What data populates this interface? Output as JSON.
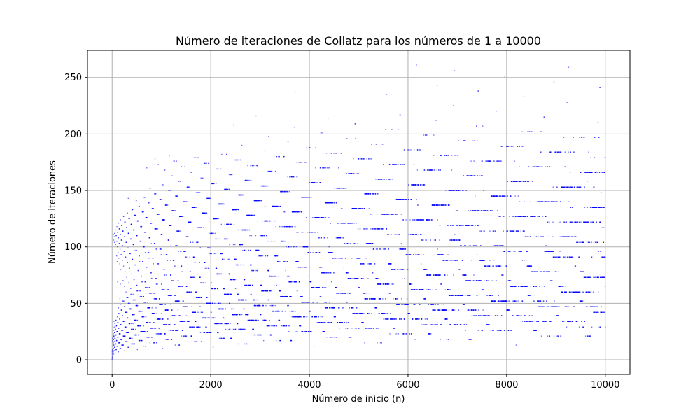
{
  "chart_data": {
    "type": "scatter",
    "title": "Número de iteraciones de Collatz para los números de 1 a 10000",
    "xlabel": "Número de inicio (n)",
    "ylabel": "Número de iteraciones",
    "xlim": [
      -500,
      10500
    ],
    "ylim": [
      -13,
      274
    ],
    "xticks": [
      0,
      2000,
      4000,
      6000,
      8000,
      10000
    ],
    "yticks": [
      0,
      50,
      100,
      150,
      200,
      250
    ],
    "grid": true,
    "legend": "none",
    "series": [
      {
        "x_range": [
          1,
          10000
        ],
        "y_rule": "collatz_steps",
        "color": "#0000ff",
        "marker": "point",
        "sample_points": [
          {
            "x": 27,
            "y": 111
          },
          {
            "x": 871,
            "y": 178
          },
          {
            "x": 6171,
            "y": 261
          },
          {
            "x": 9257,
            "y": 259
          }
        ]
      }
    ]
  }
}
